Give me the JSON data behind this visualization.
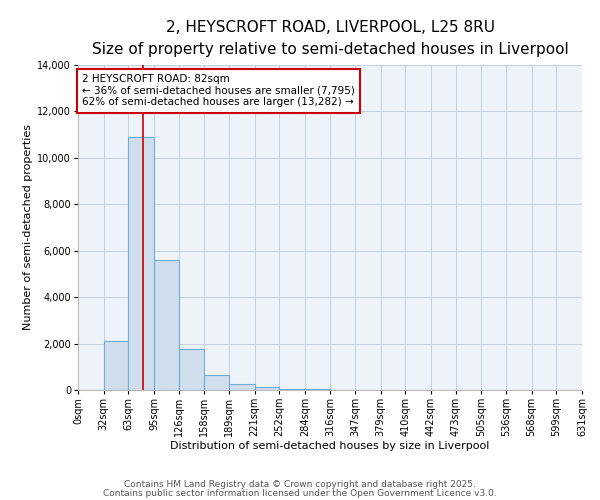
{
  "title": "2, HEYSCROFT ROAD, LIVERPOOL, L25 8RU",
  "subtitle": "Size of property relative to semi-detached houses in Liverpool",
  "xlabel": "Distribution of semi-detached houses by size in Liverpool",
  "ylabel": "Number of semi-detached properties",
  "bin_edges": [
    0,
    32,
    63,
    95,
    126,
    158,
    189,
    221,
    252,
    284,
    316,
    347,
    379,
    410,
    442,
    473,
    505,
    536,
    568,
    599,
    631
  ],
  "bin_counts": [
    0,
    2100,
    10900,
    5600,
    1750,
    650,
    280,
    110,
    60,
    30,
    10,
    0,
    0,
    0,
    0,
    0,
    0,
    0,
    0,
    0
  ],
  "bar_facecolor": "#cfdded",
  "bar_edgecolor": "#6aaed6",
  "vline_x": 82,
  "vline_color": "#cc0000",
  "annotation_line1": "2 HEYSCROFT ROAD: 82sqm",
  "annotation_line2": "← 36% of semi-detached houses are smaller (7,795)",
  "annotation_line3": "62% of semi-detached houses are larger (13,282) →",
  "annotation_box_edgecolor": "#cc0000",
  "annotation_box_facecolor": "#ffffff",
  "ylim": [
    0,
    14000
  ],
  "yticks": [
    0,
    2000,
    4000,
    6000,
    8000,
    10000,
    12000,
    14000
  ],
  "tick_labels": [
    "0sqm",
    "32sqm",
    "63sqm",
    "95sqm",
    "126sqm",
    "158sqm",
    "189sqm",
    "221sqm",
    "252sqm",
    "284sqm",
    "316sqm",
    "347sqm",
    "379sqm",
    "410sqm",
    "442sqm",
    "473sqm",
    "505sqm",
    "536sqm",
    "568sqm",
    "599sqm",
    "631sqm"
  ],
  "footer1": "Contains HM Land Registry data © Crown copyright and database right 2025.",
  "footer2": "Contains public sector information licensed under the Open Government Licence v3.0.",
  "background_color": "#ffffff",
  "plot_bg_color": "#eef3f9",
  "grid_color": "#c0d0e0",
  "title_fontsize": 11,
  "subtitle_fontsize": 9,
  "axis_label_fontsize": 8,
  "tick_fontsize": 7,
  "annotation_fontsize": 7.5,
  "footer_fontsize": 6.5
}
